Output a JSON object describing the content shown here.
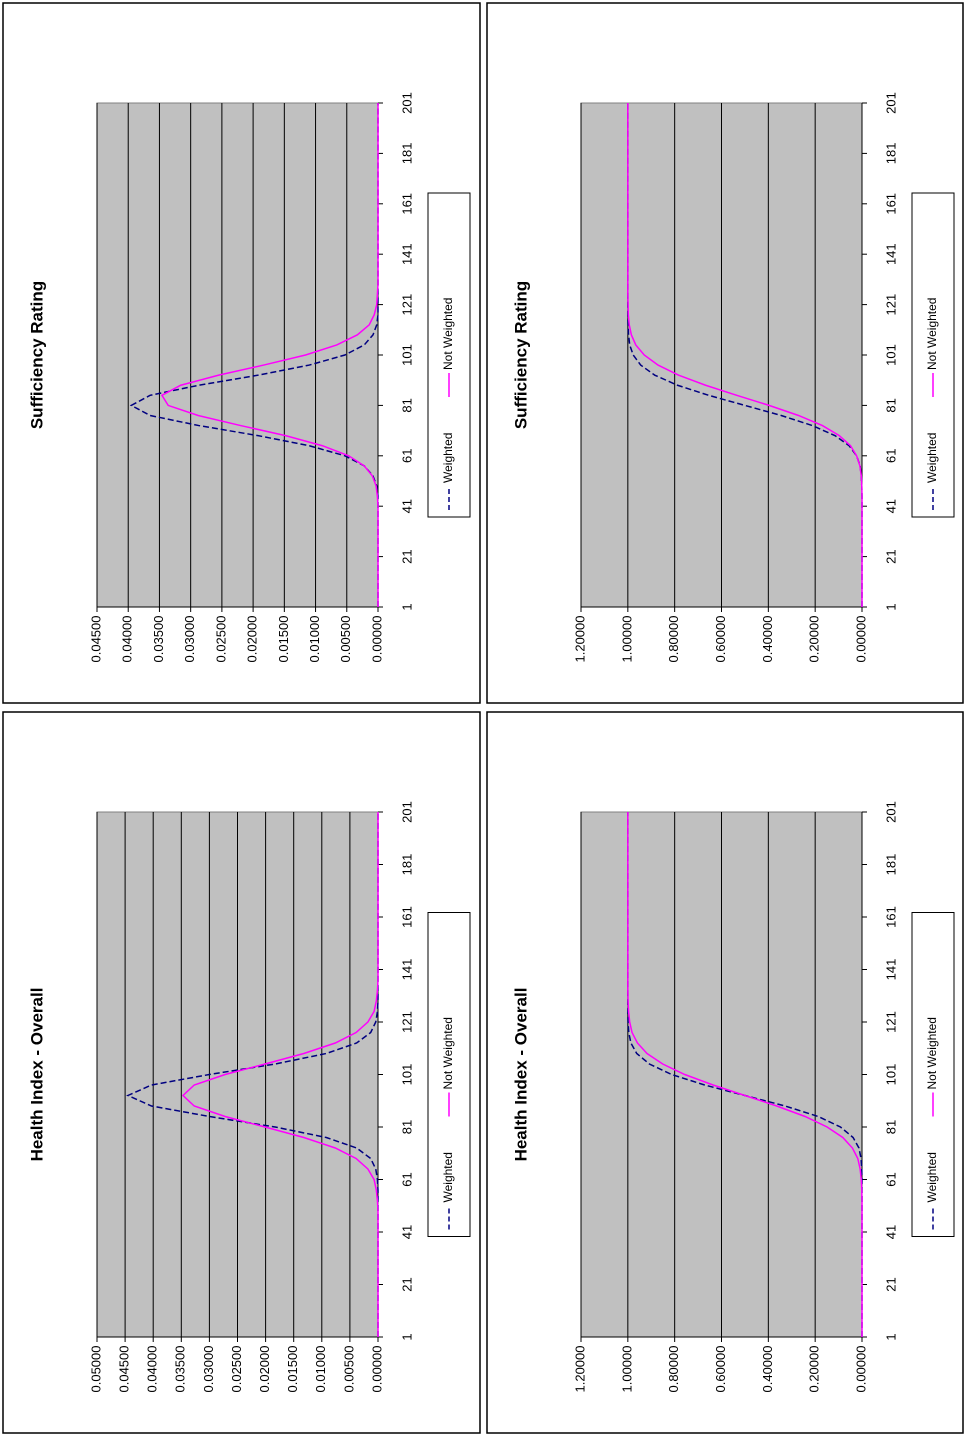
{
  "chart_data": [
    {
      "type": "line",
      "title": "Sufficiency Rating",
      "x": [
        1,
        5,
        9,
        13,
        17,
        21,
        25,
        29,
        33,
        37,
        41,
        45,
        49,
        53,
        57,
        61,
        65,
        69,
        73,
        77,
        81,
        85,
        89,
        93,
        97,
        101,
        105,
        109,
        113,
        117,
        121,
        125,
        129,
        133,
        137,
        141,
        145,
        149,
        153,
        157,
        161,
        165,
        169,
        173,
        177,
        181,
        185,
        189,
        193,
        197,
        201
      ],
      "xlim": [
        1,
        201
      ],
      "xticks": [
        1,
        21,
        41,
        61,
        81,
        101,
        121,
        141,
        161,
        181,
        201
      ],
      "ylim": [
        0,
        0.045
      ],
      "yticks": [
        {
          "value": 0,
          "label": "0.00000"
        },
        {
          "value": 0.005,
          "label": "0.00500"
        },
        {
          "value": 0.01,
          "label": "0.01000"
        },
        {
          "value": 0.015,
          "label": "0.01500"
        },
        {
          "value": 0.02,
          "label": "0.02000"
        },
        {
          "value": 0.025,
          "label": "0.02500"
        },
        {
          "value": 0.03,
          "label": "0.03000"
        },
        {
          "value": 0.035,
          "label": "0.03500"
        },
        {
          "value": 0.04,
          "label": "0.04000"
        },
        {
          "value": 0.045,
          "label": "0.04500"
        }
      ],
      "grid": true,
      "series": [
        {
          "name": "Weighted",
          "color": "#000080",
          "style": "dashed",
          "values": [
            0,
            0,
            0,
            0,
            0,
            0,
            0,
            0,
            0,
            0,
            0,
            0,
            0.0002,
            0.0008,
            0.0022,
            0.0053,
            0.011,
            0.0192,
            0.0287,
            0.0365,
            0.0395,
            0.0365,
            0.0287,
            0.0192,
            0.011,
            0.0053,
            0.0022,
            0.0008,
            0.0002,
            0,
            0,
            0,
            0,
            0,
            0,
            0,
            0,
            0,
            0,
            0,
            0,
            0,
            0,
            0,
            0,
            0,
            0,
            0,
            0,
            0,
            0
          ]
        },
        {
          "name": "Not Weighted",
          "color": "#ff00ff",
          "style": "solid",
          "values": [
            0,
            0,
            0,
            0,
            0,
            0,
            0,
            0,
            0,
            0,
            0,
            0.0001,
            0.0003,
            0.0009,
            0.0022,
            0.0047,
            0.0089,
            0.0148,
            0.022,
            0.0288,
            0.0336,
            0.0346,
            0.0316,
            0.0255,
            0.0183,
            0.0116,
            0.0066,
            0.0033,
            0.0014,
            0.0006,
            0.0002,
            0.0001,
            0,
            0,
            0,
            0,
            0,
            0,
            0,
            0,
            0,
            0,
            0,
            0,
            0,
            0,
            0,
            0,
            0,
            0,
            0
          ]
        }
      ]
    },
    {
      "type": "line",
      "title": "Sufficiency Rating",
      "x": [
        1,
        5,
        9,
        13,
        17,
        21,
        25,
        29,
        33,
        37,
        41,
        45,
        49,
        53,
        57,
        61,
        65,
        69,
        73,
        77,
        81,
        85,
        89,
        93,
        97,
        101,
        105,
        109,
        113,
        117,
        121,
        125,
        129,
        133,
        137,
        141,
        145,
        149,
        153,
        157,
        161,
        165,
        169,
        173,
        177,
        181,
        185,
        189,
        193,
        197,
        201
      ],
      "xlim": [
        1,
        201
      ],
      "xticks": [
        1,
        21,
        41,
        61,
        81,
        101,
        121,
        141,
        161,
        181,
        201
      ],
      "ylim": [
        0,
        1.2
      ],
      "yticks": [
        {
          "value": 0,
          "label": "0.00000"
        },
        {
          "value": 0.2,
          "label": "0.20000"
        },
        {
          "value": 0.4,
          "label": "0.40000"
        },
        {
          "value": 0.6,
          "label": "0.60000"
        },
        {
          "value": 0.8,
          "label": "0.80000"
        },
        {
          "value": 1,
          "label": "1.00000"
        },
        {
          "value": 1.2,
          "label": "1.20000"
        }
      ],
      "grid": true,
      "series": [
        {
          "name": "Weighted",
          "color": "#000080",
          "style": "dashed",
          "values": [
            0,
            0,
            0,
            0,
            0,
            0,
            0,
            0,
            0,
            0,
            0,
            0,
            0.001,
            0.003,
            0.008,
            0.023,
            0.055,
            0.115,
            0.212,
            0.345,
            0.5,
            0.655,
            0.788,
            0.885,
            0.945,
            0.977,
            0.992,
            0.997,
            0.999,
            1,
            1,
            1,
            1,
            1,
            1,
            1,
            1,
            1,
            1,
            1,
            1,
            1,
            1,
            1,
            1,
            1,
            1,
            1,
            1,
            1,
            1
          ]
        },
        {
          "name": "Not Weighted",
          "color": "#ff00ff",
          "style": "solid",
          "values": [
            0,
            0,
            0,
            0,
            0,
            0,
            0,
            0,
            0,
            0,
            0,
            0,
            0.001,
            0.003,
            0.009,
            0.023,
            0.049,
            0.097,
            0.169,
            0.271,
            0.397,
            0.535,
            0.668,
            0.783,
            0.871,
            0.93,
            0.966,
            0.985,
            0.994,
            0.998,
            0.999,
            1,
            1,
            1,
            1,
            1,
            1,
            1,
            1,
            1,
            1,
            1,
            1,
            1,
            1,
            1,
            1,
            1,
            1,
            1,
            1
          ]
        }
      ]
    },
    {
      "type": "line",
      "title": "Health Index - Overall",
      "x": [
        1,
        5,
        9,
        13,
        17,
        21,
        25,
        29,
        33,
        37,
        41,
        45,
        49,
        53,
        57,
        61,
        65,
        69,
        73,
        77,
        81,
        85,
        89,
        93,
        97,
        101,
        105,
        109,
        113,
        117,
        121,
        125,
        129,
        133,
        137,
        141,
        145,
        149,
        153,
        157,
        161,
        165,
        169,
        173,
        177,
        181,
        185,
        189,
        193,
        197,
        201
      ],
      "xlim": [
        1,
        201
      ],
      "xticks": [
        1,
        21,
        41,
        61,
        81,
        101,
        121,
        141,
        161,
        181,
        201
      ],
      "ylim": [
        0,
        0.05
      ],
      "yticks": [
        {
          "value": 0,
          "label": "0.00000"
        },
        {
          "value": 0.005,
          "label": "0.00500"
        },
        {
          "value": 0.01,
          "label": "0.01000"
        },
        {
          "value": 0.015,
          "label": "0.01500"
        },
        {
          "value": 0.02,
          "label": "0.02000"
        },
        {
          "value": 0.025,
          "label": "0.02500"
        },
        {
          "value": 0.03,
          "label": "0.03000"
        },
        {
          "value": 0.035,
          "label": "0.03500"
        },
        {
          "value": 0.04,
          "label": "0.04000"
        },
        {
          "value": 0.045,
          "label": "0.04500"
        },
        {
          "value": 0.05,
          "label": "0.05000"
        }
      ],
      "grid": true,
      "series": [
        {
          "name": "Weighted",
          "color": "#000080",
          "style": "dashed",
          "values": [
            0,
            0,
            0,
            0,
            0,
            0,
            0,
            0,
            0,
            0,
            0,
            0,
            0,
            0,
            0,
            0.0001,
            0.0004,
            0.0013,
            0.0038,
            0.0092,
            0.0183,
            0.03,
            0.0403,
            0.0445,
            0.0403,
            0.03,
            0.0183,
            0.0092,
            0.0038,
            0.0013,
            0.0004,
            0.0001,
            0,
            0,
            0,
            0,
            0,
            0,
            0,
            0,
            0,
            0,
            0,
            0,
            0,
            0,
            0,
            0,
            0,
            0,
            0
          ]
        },
        {
          "name": "Not Weighted",
          "color": "#ff00ff",
          "style": "solid",
          "values": [
            0,
            0,
            0,
            0,
            0,
            0,
            0,
            0,
            0,
            0,
            0,
            0,
            0,
            0.0001,
            0.0003,
            0.0007,
            0.0018,
            0.0039,
            0.0076,
            0.0132,
            0.0201,
            0.0272,
            0.0327,
            0.0347,
            0.0327,
            0.0272,
            0.0201,
            0.0132,
            0.0076,
            0.0039,
            0.0018,
            0.0007,
            0.0003,
            0.0001,
            0,
            0,
            0,
            0,
            0,
            0,
            0,
            0,
            0,
            0,
            0,
            0,
            0,
            0,
            0,
            0,
            0
          ]
        }
      ]
    },
    {
      "type": "line",
      "title": "Health Index - Overall",
      "x": [
        1,
        5,
        9,
        13,
        17,
        21,
        25,
        29,
        33,
        37,
        41,
        45,
        49,
        53,
        57,
        61,
        65,
        69,
        73,
        77,
        81,
        85,
        89,
        93,
        97,
        101,
        105,
        109,
        113,
        117,
        121,
        125,
        129,
        133,
        137,
        141,
        145,
        149,
        153,
        157,
        161,
        165,
        169,
        173,
        177,
        181,
        185,
        189,
        193,
        197,
        201
      ],
      "xlim": [
        1,
        201
      ],
      "xticks": [
        1,
        21,
        41,
        61,
        81,
        101,
        121,
        141,
        161,
        181,
        201
      ],
      "ylim": [
        0,
        1.2
      ],
      "yticks": [
        {
          "value": 0,
          "label": "0.00000"
        },
        {
          "value": 0.2,
          "label": "0.20000"
        },
        {
          "value": 0.4,
          "label": "0.40000"
        },
        {
          "value": 0.6,
          "label": "0.60000"
        },
        {
          "value": 0.8,
          "label": "0.80000"
        },
        {
          "value": 1,
          "label": "1.00000"
        },
        {
          "value": 1.2,
          "label": "1.20000"
        }
      ],
      "grid": true,
      "series": [
        {
          "name": "Weighted",
          "color": "#000080",
          "style": "dashed",
          "values": [
            0,
            0,
            0,
            0,
            0,
            0,
            0,
            0,
            0,
            0,
            0,
            0,
            0,
            0,
            0,
            0,
            0.001,
            0.004,
            0.013,
            0.038,
            0.092,
            0.187,
            0.328,
            0.5,
            0.672,
            0.813,
            0.908,
            0.962,
            0.987,
            0.996,
            0.999,
            1,
            1,
            1,
            1,
            1,
            1,
            1,
            1,
            1,
            1,
            1,
            1,
            1,
            1,
            1,
            1,
            1,
            1,
            1,
            1
          ]
        },
        {
          "name": "Not Weighted",
          "color": "#ff00ff",
          "style": "solid",
          "values": [
            0,
            0,
            0,
            0,
            0,
            0,
            0,
            0,
            0,
            0,
            0,
            0,
            0,
            0,
            0.001,
            0.003,
            0.008,
            0.018,
            0.041,
            0.082,
            0.149,
            0.243,
            0.364,
            0.5,
            0.636,
            0.757,
            0.851,
            0.918,
            0.959,
            0.982,
            0.992,
            0.997,
            0.999,
            1,
            1,
            1,
            1,
            1,
            1,
            1,
            1,
            1,
            1,
            1,
            1,
            1,
            1,
            1,
            1,
            1,
            1
          ]
        }
      ]
    }
  ]
}
